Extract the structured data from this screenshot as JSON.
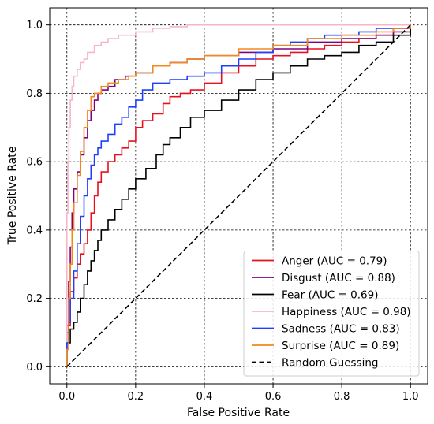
{
  "chart_data": {
    "type": "line",
    "xlabel": "False Positive Rate",
    "ylabel": "True Positive Rate",
    "xlim": [
      -0.05,
      1.05
    ],
    "ylim": [
      -0.05,
      1.05
    ],
    "xticks": [
      0.0,
      0.2,
      0.4,
      0.6,
      0.8,
      1.0
    ],
    "yticks": [
      0.0,
      0.2,
      0.4,
      0.6,
      0.8,
      1.0
    ],
    "xtick_labels": [
      "0.0",
      "0.2",
      "0.4",
      "0.6",
      "0.8",
      "1.0"
    ],
    "ytick_labels": [
      "0.0",
      "0.2",
      "0.4",
      "0.6",
      "0.8",
      "1.0"
    ],
    "grid": true,
    "legend_position": "lower-right",
    "series": [
      {
        "name": "Anger (AUC = 0.79)",
        "color": "#e8101c",
        "style": "solid",
        "points": [
          [
            0,
            0
          ],
          [
            0,
            0.12
          ],
          [
            0.01,
            0.22
          ],
          [
            0.02,
            0.26
          ],
          [
            0.03,
            0.3
          ],
          [
            0.04,
            0.33
          ],
          [
            0.05,
            0.36
          ],
          [
            0.06,
            0.4
          ],
          [
            0.07,
            0.45
          ],
          [
            0.08,
            0.5
          ],
          [
            0.09,
            0.54
          ],
          [
            0.1,
            0.57
          ],
          [
            0.12,
            0.6
          ],
          [
            0.14,
            0.62
          ],
          [
            0.16,
            0.64
          ],
          [
            0.18,
            0.66
          ],
          [
            0.2,
            0.7
          ],
          [
            0.22,
            0.72
          ],
          [
            0.25,
            0.74
          ],
          [
            0.28,
            0.77
          ],
          [
            0.3,
            0.79
          ],
          [
            0.33,
            0.8
          ],
          [
            0.36,
            0.81
          ],
          [
            0.4,
            0.83
          ],
          [
            0.45,
            0.86
          ],
          [
            0.5,
            0.88
          ],
          [
            0.55,
            0.9
          ],
          [
            0.6,
            0.91
          ],
          [
            0.65,
            0.92
          ],
          [
            0.7,
            0.93
          ],
          [
            0.75,
            0.94
          ],
          [
            0.8,
            0.95
          ],
          [
            0.85,
            0.96
          ],
          [
            0.9,
            0.97
          ],
          [
            0.95,
            0.99
          ],
          [
            1.0,
            1.0
          ]
        ]
      },
      {
        "name": "Disgust (AUC = 0.88)",
        "color": "#800080",
        "style": "solid",
        "points": [
          [
            0,
            0
          ],
          [
            0,
            0.1
          ],
          [
            0.005,
            0.25
          ],
          [
            0.01,
            0.35
          ],
          [
            0.015,
            0.45
          ],
          [
            0.02,
            0.52
          ],
          [
            0.03,
            0.57
          ],
          [
            0.04,
            0.62
          ],
          [
            0.05,
            0.67
          ],
          [
            0.06,
            0.72
          ],
          [
            0.07,
            0.75
          ],
          [
            0.08,
            0.78
          ],
          [
            0.09,
            0.8
          ],
          [
            0.1,
            0.81
          ],
          [
            0.12,
            0.82
          ],
          [
            0.14,
            0.84
          ],
          [
            0.17,
            0.85
          ],
          [
            0.2,
            0.86
          ],
          [
            0.25,
            0.88
          ],
          [
            0.3,
            0.89
          ],
          [
            0.35,
            0.9
          ],
          [
            0.4,
            0.91
          ],
          [
            0.5,
            0.92
          ],
          [
            0.6,
            0.93
          ],
          [
            0.7,
            0.95
          ],
          [
            0.8,
            0.96
          ],
          [
            0.9,
            0.97
          ],
          [
            0.95,
            0.98
          ],
          [
            1.0,
            1.0
          ]
        ]
      },
      {
        "name": "Fear (AUC = 0.69)",
        "color": "#000000",
        "style": "solid",
        "points": [
          [
            0,
            0
          ],
          [
            0,
            0.07
          ],
          [
            0.01,
            0.11
          ],
          [
            0.02,
            0.13
          ],
          [
            0.03,
            0.16
          ],
          [
            0.04,
            0.2
          ],
          [
            0.05,
            0.24
          ],
          [
            0.06,
            0.28
          ],
          [
            0.07,
            0.31
          ],
          [
            0.08,
            0.34
          ],
          [
            0.09,
            0.37
          ],
          [
            0.1,
            0.4
          ],
          [
            0.12,
            0.43
          ],
          [
            0.14,
            0.46
          ],
          [
            0.16,
            0.49
          ],
          [
            0.18,
            0.52
          ],
          [
            0.2,
            0.55
          ],
          [
            0.23,
            0.58
          ],
          [
            0.26,
            0.62
          ],
          [
            0.28,
            0.65
          ],
          [
            0.3,
            0.67
          ],
          [
            0.33,
            0.7
          ],
          [
            0.36,
            0.73
          ],
          [
            0.4,
            0.75
          ],
          [
            0.45,
            0.78
          ],
          [
            0.5,
            0.81
          ],
          [
            0.55,
            0.84
          ],
          [
            0.6,
            0.86
          ],
          [
            0.65,
            0.88
          ],
          [
            0.7,
            0.9
          ],
          [
            0.75,
            0.91
          ],
          [
            0.8,
            0.92
          ],
          [
            0.85,
            0.94
          ],
          [
            0.9,
            0.95
          ],
          [
            0.95,
            0.97
          ],
          [
            1.0,
            1.0
          ]
        ]
      },
      {
        "name": "Happiness (AUC = 0.98)",
        "color": "#f7b6c8",
        "style": "solid",
        "points": [
          [
            0,
            0
          ],
          [
            0,
            0.45
          ],
          [
            0.003,
            0.6
          ],
          [
            0.006,
            0.7
          ],
          [
            0.01,
            0.78
          ],
          [
            0.015,
            0.82
          ],
          [
            0.02,
            0.85
          ],
          [
            0.03,
            0.87
          ],
          [
            0.04,
            0.89
          ],
          [
            0.05,
            0.9
          ],
          [
            0.06,
            0.92
          ],
          [
            0.08,
            0.94
          ],
          [
            0.1,
            0.95
          ],
          [
            0.12,
            0.96
          ],
          [
            0.15,
            0.97
          ],
          [
            0.2,
            0.98
          ],
          [
            0.25,
            0.99
          ],
          [
            0.3,
            0.995
          ],
          [
            0.35,
            1.0
          ],
          [
            1.0,
            1.0
          ]
        ]
      },
      {
        "name": "Sadness (AUC = 0.83)",
        "color": "#1f3fff",
        "style": "solid",
        "points": [
          [
            0,
            0
          ],
          [
            0,
            0.07
          ],
          [
            0.005,
            0.13
          ],
          [
            0.01,
            0.2
          ],
          [
            0.02,
            0.28
          ],
          [
            0.03,
            0.36
          ],
          [
            0.04,
            0.44
          ],
          [
            0.05,
            0.5
          ],
          [
            0.06,
            0.55
          ],
          [
            0.07,
            0.59
          ],
          [
            0.08,
            0.62
          ],
          [
            0.09,
            0.64
          ],
          [
            0.1,
            0.66
          ],
          [
            0.12,
            0.68
          ],
          [
            0.14,
            0.71
          ],
          [
            0.16,
            0.73
          ],
          [
            0.18,
            0.76
          ],
          [
            0.2,
            0.78
          ],
          [
            0.22,
            0.81
          ],
          [
            0.25,
            0.83
          ],
          [
            0.3,
            0.84
          ],
          [
            0.35,
            0.85
          ],
          [
            0.4,
            0.86
          ],
          [
            0.45,
            0.88
          ],
          [
            0.5,
            0.9
          ],
          [
            0.55,
            0.92
          ],
          [
            0.6,
            0.94
          ],
          [
            0.65,
            0.95
          ],
          [
            0.7,
            0.96
          ],
          [
            0.75,
            0.97
          ],
          [
            0.8,
            0.97
          ],
          [
            0.85,
            0.98
          ],
          [
            0.9,
            0.99
          ],
          [
            0.95,
            0.99
          ],
          [
            1.0,
            1.0
          ]
        ]
      },
      {
        "name": "Surprise (AUC = 0.89)",
        "color": "#f08a1c",
        "style": "solid",
        "points": [
          [
            0,
            0
          ],
          [
            0,
            0.05
          ],
          [
            0.005,
            0.2
          ],
          [
            0.01,
            0.3
          ],
          [
            0.015,
            0.4
          ],
          [
            0.02,
            0.48
          ],
          [
            0.03,
            0.56
          ],
          [
            0.04,
            0.63
          ],
          [
            0.05,
            0.7
          ],
          [
            0.06,
            0.75
          ],
          [
            0.07,
            0.79
          ],
          [
            0.08,
            0.8
          ],
          [
            0.1,
            0.82
          ],
          [
            0.12,
            0.83
          ],
          [
            0.15,
            0.84
          ],
          [
            0.18,
            0.85
          ],
          [
            0.2,
            0.86
          ],
          [
            0.25,
            0.88
          ],
          [
            0.3,
            0.89
          ],
          [
            0.35,
            0.9
          ],
          [
            0.4,
            0.91
          ],
          [
            0.5,
            0.93
          ],
          [
            0.6,
            0.94
          ],
          [
            0.7,
            0.96
          ],
          [
            0.8,
            0.97
          ],
          [
            0.9,
            0.98
          ],
          [
            0.95,
            0.99
          ],
          [
            1.0,
            1.0
          ]
        ]
      },
      {
        "name": "Random Guessing",
        "color": "#000000",
        "style": "dashed",
        "points": [
          [
            0,
            0
          ],
          [
            1,
            1
          ]
        ]
      }
    ]
  }
}
